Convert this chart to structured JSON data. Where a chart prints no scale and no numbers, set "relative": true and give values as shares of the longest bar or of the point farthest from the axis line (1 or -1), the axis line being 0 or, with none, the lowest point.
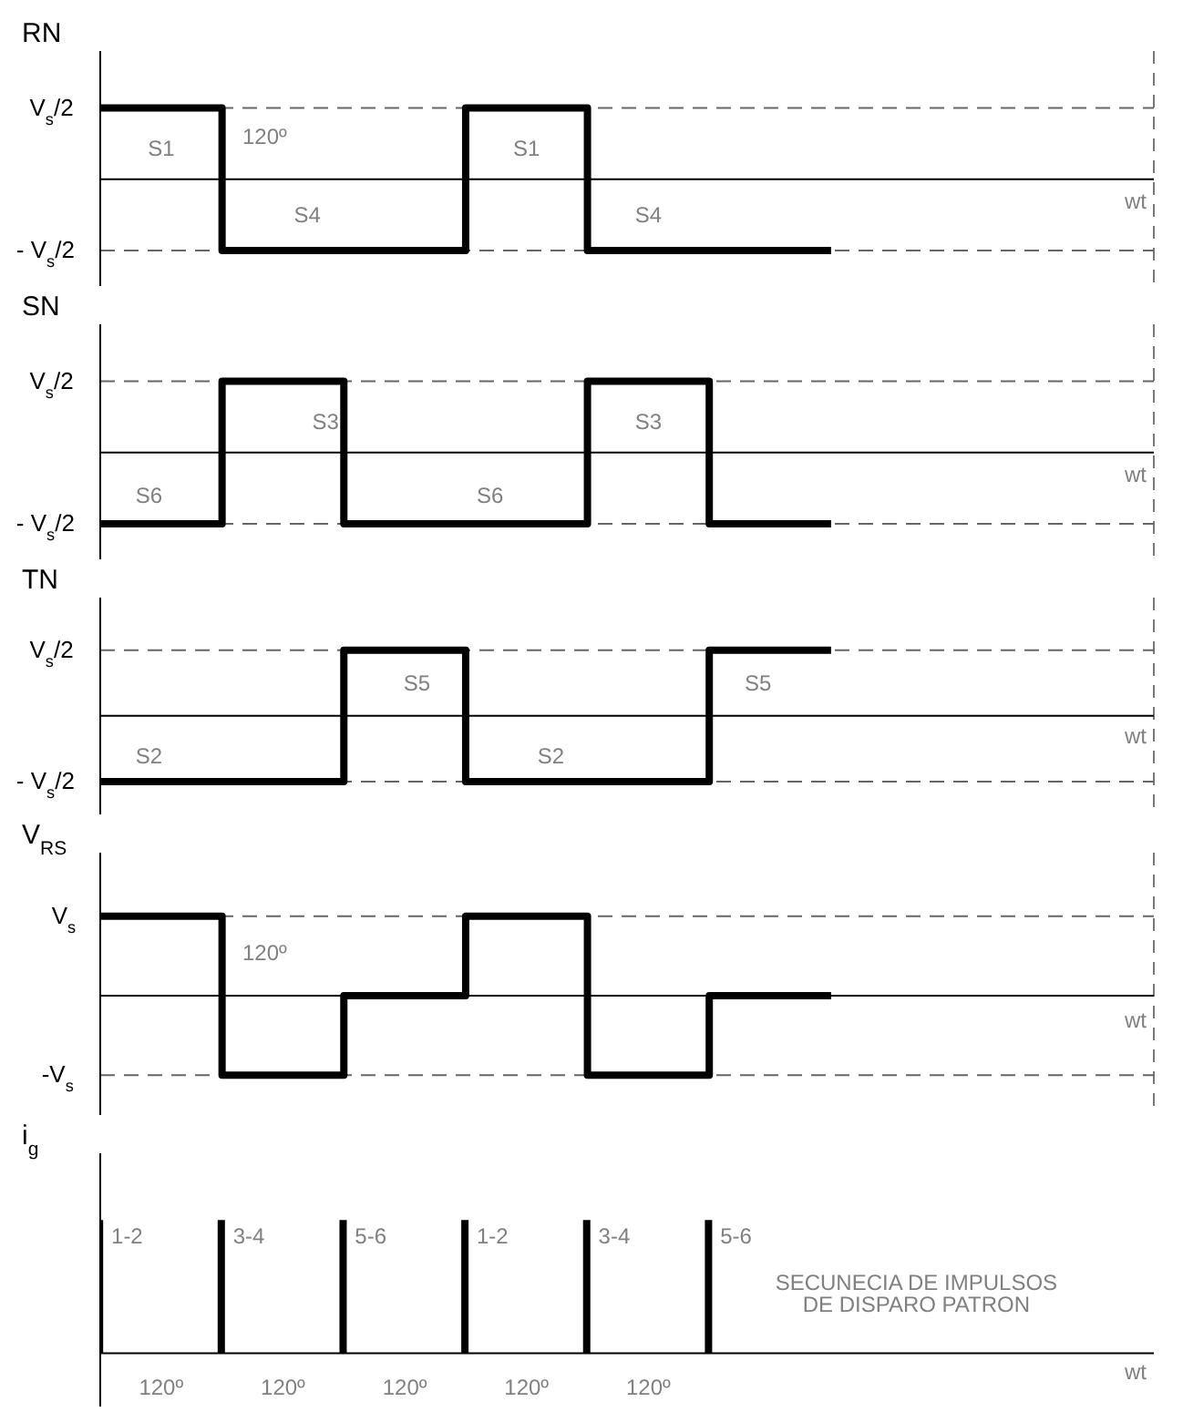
{
  "chart_data": [
    {
      "type": "step",
      "ylabel": "RN",
      "categories": [
        null,
        null,
        null,
        null,
        null,
        null,
        null
      ],
      "values": [
        1,
        -1,
        -1,
        1,
        -1,
        -1,
        -1
      ],
      "relative": true,
      "color": "#000000",
      "ref_lines": [
        {
          "axis": "y",
          "value": 1,
          "line_style": "dashed"
        },
        {
          "axis": "y",
          "value": -1,
          "line_style": "dashed"
        }
      ],
      "grid": "x",
      "tick_labels": false,
      "annotations": [
        "V$_{s}$/2",
        "- V$_{s}$/2",
        "S1",
        "120º",
        "S4",
        "S1",
        "S4",
        "wt"
      ]
    },
    {
      "type": "step",
      "ylabel": "SN",
      "categories": [
        null,
        null,
        null,
        null,
        null,
        null,
        null
      ],
      "values": [
        -1,
        1,
        -1,
        -1,
        1,
        -1,
        -1
      ],
      "relative": true,
      "color": "#000000",
      "ref_lines": [
        {
          "axis": "y",
          "value": 1,
          "line_style": "dashed"
        },
        {
          "axis": "y",
          "value": -1,
          "line_style": "dashed"
        }
      ],
      "grid": "x",
      "tick_labels": false,
      "annotations": [
        "V$_{s}$/2",
        "- V$_{s}$/2",
        "S6",
        "S3",
        "S6",
        "S3",
        "wt"
      ]
    },
    {
      "type": "step",
      "ylabel": "TN",
      "categories": [
        null,
        null,
        null,
        null,
        null,
        null,
        null
      ],
      "values": [
        -1,
        -1,
        1,
        -1,
        -1,
        1,
        1
      ],
      "relative": true,
      "color": "#000000",
      "ref_lines": [
        {
          "axis": "y",
          "value": 1,
          "line_style": "dashed"
        },
        {
          "axis": "y",
          "value": -1,
          "line_style": "dashed"
        }
      ],
      "grid": "x",
      "tick_labels": false,
      "annotations": [
        "V$_{s}$/2",
        "- V$_{s}$/2",
        "S2",
        "S5",
        "S2",
        "S5",
        "wt"
      ]
    },
    {
      "type": "step",
      "ylabel": "V$_{RS}$",
      "categories": [
        null,
        null,
        null,
        null,
        null,
        null,
        null
      ],
      "values": [
        1,
        -1,
        0,
        1,
        -1,
        0,
        0
      ],
      "relative": true,
      "color": "#000000",
      "ref_lines": [
        {
          "axis": "y",
          "value": 1,
          "line_style": "dashed"
        },
        {
          "axis": "y",
          "value": -1,
          "line_style": "dashed"
        }
      ],
      "grid": "x",
      "tick_labels": false,
      "annotations": [
        "V$_{s}$",
        "-V$_{s}$",
        "120º",
        "wt"
      ]
    },
    {
      "type": "bar",
      "ylabel": "i$_{g}$",
      "categories": [
        null,
        null,
        null,
        null,
        null,
        null
      ],
      "values": [
        1,
        1,
        1,
        1,
        1,
        1
      ],
      "relative": true,
      "color": "#000000",
      "tick_labels": false,
      "annotations": [
        "1-2",
        "3-4",
        "5-6",
        "1-2",
        "3-4",
        "5-6",
        "SECUNECIA DE IMPULSOS DE DISPARO PATRON",
        "120º",
        "120º",
        "120º",
        "120º",
        "120º",
        "wt"
      ]
    }
  ]
}
